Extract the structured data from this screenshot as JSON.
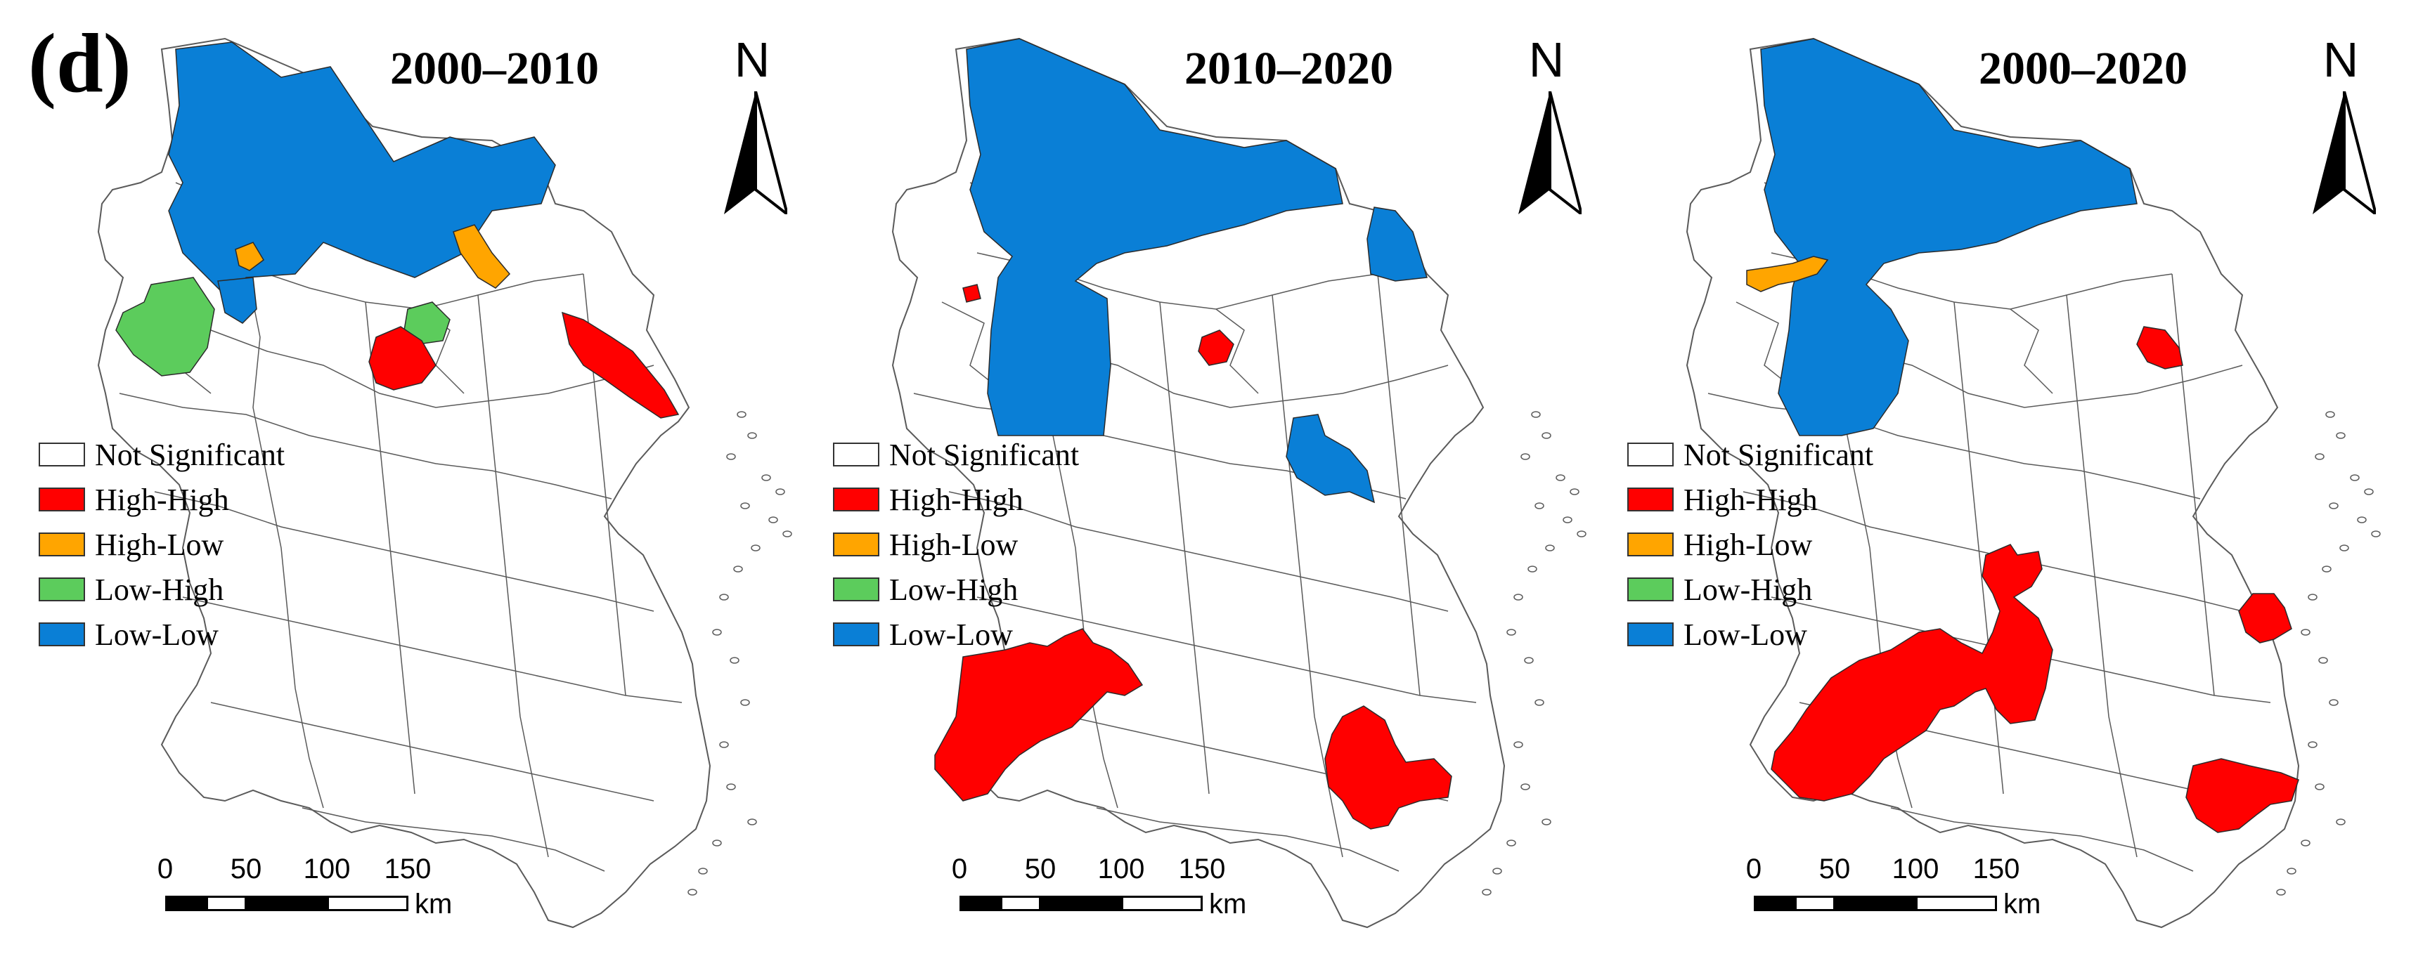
{
  "figure_label": "(d)",
  "colors": {
    "high_high": "#ff0000",
    "high_low": "#ffa500",
    "low_high": "#5ccc5c",
    "low_low": "#0a7fd6",
    "not_significant": "#ffffff",
    "boundary": "#5a5a5a"
  },
  "legend": [
    {
      "label": "Not Significant",
      "color": "#ffffff"
    },
    {
      "label": "High-High",
      "color": "#ff0000"
    },
    {
      "label": "High-Low",
      "color": "#ffa500"
    },
    {
      "label": "Low-High",
      "color": "#5ccc5c"
    },
    {
      "label": "Low-Low",
      "color": "#0a7fd6"
    }
  ],
  "north_arrow": {
    "letter": "N"
  },
  "scale_bar": {
    "ticks": [
      "0",
      "50",
      "100",
      "150"
    ],
    "unit": "km"
  },
  "panels": [
    {
      "title": "2000–2010",
      "clusters": [
        "Low-Low",
        "High-Low",
        "Low-High",
        "High-High"
      ]
    },
    {
      "title": "2010–2020",
      "clusters": [
        "Low-Low",
        "High-High"
      ]
    },
    {
      "title": "2000–2020",
      "clusters": [
        "Low-Low",
        "High-Low",
        "High-High"
      ]
    }
  ]
}
